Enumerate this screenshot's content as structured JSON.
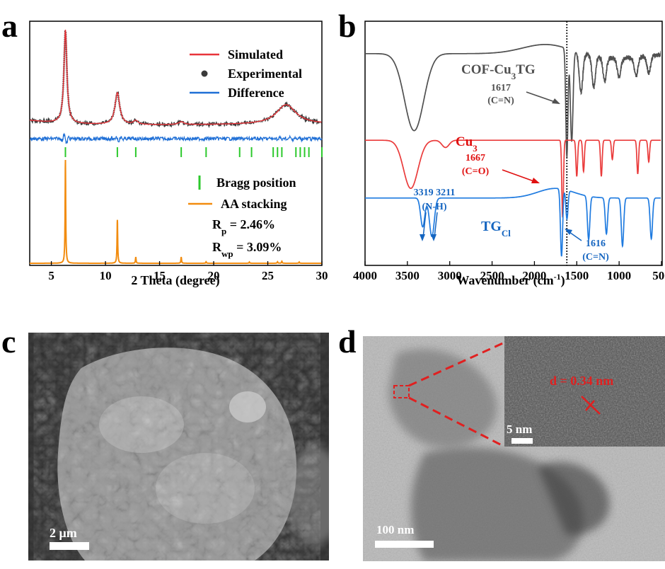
{
  "panels": {
    "a": "a",
    "b": "b",
    "c": "c",
    "d": "d"
  },
  "colors": {
    "simulated": "#e8353a",
    "experimental": "#3a3a3a",
    "difference": "#1f6fd6",
    "bragg": "#2cc92c",
    "aa": "#f28c0f",
    "cof": "#505050",
    "cu3": "#ea3b3b",
    "tg": "#1f7be0",
    "cu3_annot": "#e01010",
    "tg_annot": "#1565c0",
    "scale_red": "#e02020"
  },
  "chart_data": [
    {
      "type": "line",
      "panel": "a",
      "xlabel": "2 Theta (degree)",
      "xlim": [
        3,
        30
      ],
      "xticks": [
        5,
        10,
        15,
        20,
        25,
        30
      ],
      "y_ticks_shown": false,
      "legend": {
        "placement": "top-right",
        "entries": [
          "Simulated",
          "Experimental",
          "Difference"
        ]
      },
      "legend2": {
        "placement": "bottom-right",
        "entries": [
          "Bragg position",
          "AA stacking"
        ]
      },
      "annotations": {
        "rp_main": "R",
        "rp_sub": "p",
        "rp_value": " = 2.46%",
        "rwp_main": "R",
        "rwp_sub": "wp",
        "rwp_value": " = 3.09%"
      },
      "xrd_peaks": [
        {
          "x": 6.3,
          "height": 1.0,
          "width": 0.16
        },
        {
          "x": 11.1,
          "height": 0.34,
          "width": 0.26
        },
        {
          "x": 12.8,
          "height": 0.04,
          "width": 0.25
        },
        {
          "x": 17.0,
          "height": 0.03,
          "width": 0.3
        },
        {
          "x": 26.7,
          "height": 0.21,
          "width": 1.1
        }
      ],
      "bragg_positions": [
        6.3,
        11.1,
        12.8,
        17.0,
        19.3,
        22.4,
        23.5,
        25.5,
        25.9,
        26.3,
        27.6,
        28.0,
        28.4,
        28.8,
        30.0
      ],
      "aa_stacking_peaks": [
        {
          "x": 6.3,
          "intensity": 1.0
        },
        {
          "x": 11.1,
          "intensity": 0.42
        },
        {
          "x": 12.8,
          "intensity": 0.06
        },
        {
          "x": 17.0,
          "intensity": 0.06
        },
        {
          "x": 19.3,
          "intensity": 0.015
        },
        {
          "x": 23.3,
          "intensity": 0.012
        },
        {
          "x": 25.9,
          "intensity": 0.015
        },
        {
          "x": 26.3,
          "intensity": 0.02
        },
        {
          "x": 27.9,
          "intensity": 0.012
        }
      ]
    },
    {
      "type": "line",
      "panel": "b",
      "xlabel_main": "Wavenumber (cm",
      "xlabel_sup": "-1",
      "xlabel_end": ")",
      "xlim": [
        4000,
        500
      ],
      "xticks": [
        4000,
        3500,
        3000,
        2500,
        2000,
        1500,
        1000,
        500
      ],
      "xtick_labels": [
        "4000",
        "3500",
        "3000",
        "2500",
        "2000",
        "1500",
        "1000",
        "500"
      ],
      "y_ticks_shown": false,
      "reference_line": 1617,
      "series": [
        {
          "label_main": "COF-Cu",
          "label_sub": "3",
          "label_end": "TG",
          "baseline": 0.88,
          "bands": [
            {
              "x": 3420,
              "depth": 0.32,
              "width": 160
            },
            {
              "x": 1617,
              "depth": 0.45,
              "width": 18
            },
            {
              "x": 1560,
              "depth": 0.38,
              "width": 22
            },
            {
              "x": 1450,
              "depth": 0.16,
              "width": 30
            },
            {
              "x": 1300,
              "depth": 0.13,
              "width": 28
            },
            {
              "x": 1170,
              "depth": 0.1,
              "width": 28
            },
            {
              "x": 1000,
              "depth": 0.08,
              "width": 30
            },
            {
              "x": 800,
              "depth": 0.08,
              "width": 30
            },
            {
              "x": 650,
              "depth": 0.07,
              "width": 30
            }
          ],
          "annotation_value": "1617",
          "annotation_group": "(C=N)"
        },
        {
          "label_main": "Cu",
          "label_sub": "3",
          "label_end": "",
          "baseline": 0.52,
          "bands": [
            {
              "x": 3460,
              "depth": 0.2,
              "width": 120
            },
            {
              "x": 3050,
              "depth": 0.03,
              "width": 60
            },
            {
              "x": 1667,
              "depth": 0.32,
              "width": 14
            },
            {
              "x": 1500,
              "depth": 0.15,
              "width": 14
            },
            {
              "x": 1420,
              "depth": 0.13,
              "width": 14
            },
            {
              "x": 1210,
              "depth": 0.15,
              "width": 14
            },
            {
              "x": 1080,
              "depth": 0.08,
              "width": 14
            },
            {
              "x": 780,
              "depth": 0.14,
              "width": 14
            },
            {
              "x": 650,
              "depth": 0.09,
              "width": 14
            }
          ],
          "annotation_value": "1667",
          "annotation_group": "(C=O)"
        },
        {
          "label_main": "TG",
          "label_sub": "Cl",
          "label_end": "",
          "baseline": 0.28,
          "bands": [
            {
              "x": 3319,
              "depth": 0.12,
              "width": 35
            },
            {
              "x": 3211,
              "depth": 0.16,
              "width": 40
            },
            {
              "x": 1680,
              "depth": 0.28,
              "width": 18
            },
            {
              "x": 1616,
              "depth": 0.12,
              "width": 18
            },
            {
              "x": 1360,
              "depth": 0.18,
              "width": 20
            },
            {
              "x": 1150,
              "depth": 0.15,
              "width": 20
            },
            {
              "x": 960,
              "depth": 0.2,
              "width": 20
            },
            {
              "x": 620,
              "depth": 0.17,
              "width": 20
            }
          ],
          "annotation_value": "1616",
          "annotation_group": "(C=N)",
          "nh_values": "3319  3211",
          "nh_group": "(N-H)"
        }
      ]
    }
  ],
  "sem": {
    "scale_label": "2 μm"
  },
  "tem": {
    "scale_label": "100 nm",
    "inset_scale_label": "5 nm",
    "d_spacing": "d = 0.34 nm"
  }
}
